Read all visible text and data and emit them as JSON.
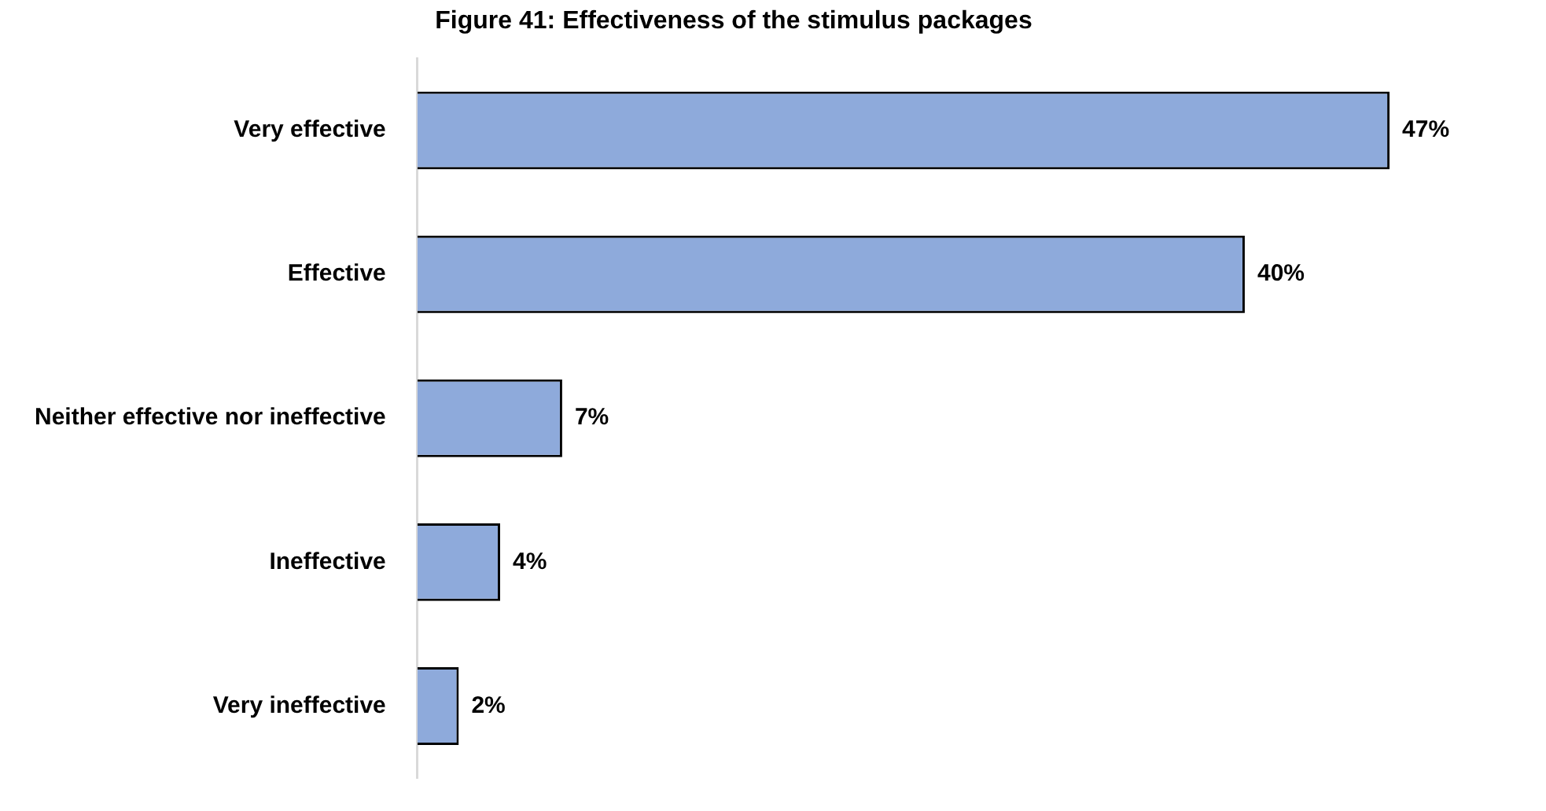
{
  "chart_data": {
    "type": "bar",
    "orientation": "horizontal",
    "title": "Figure 41: Effectiveness of the stimulus packages",
    "categories": [
      "Very effective",
      "Effective",
      "Neither effective nor ineffective",
      "Ineffective",
      "Very ineffective"
    ],
    "values": [
      47,
      40,
      7,
      4,
      2
    ],
    "value_labels": [
      "47%",
      "40%",
      "7%",
      "4%",
      "2%"
    ],
    "color": "#8eaadb",
    "tick_labels": "y",
    "legend": false
  }
}
